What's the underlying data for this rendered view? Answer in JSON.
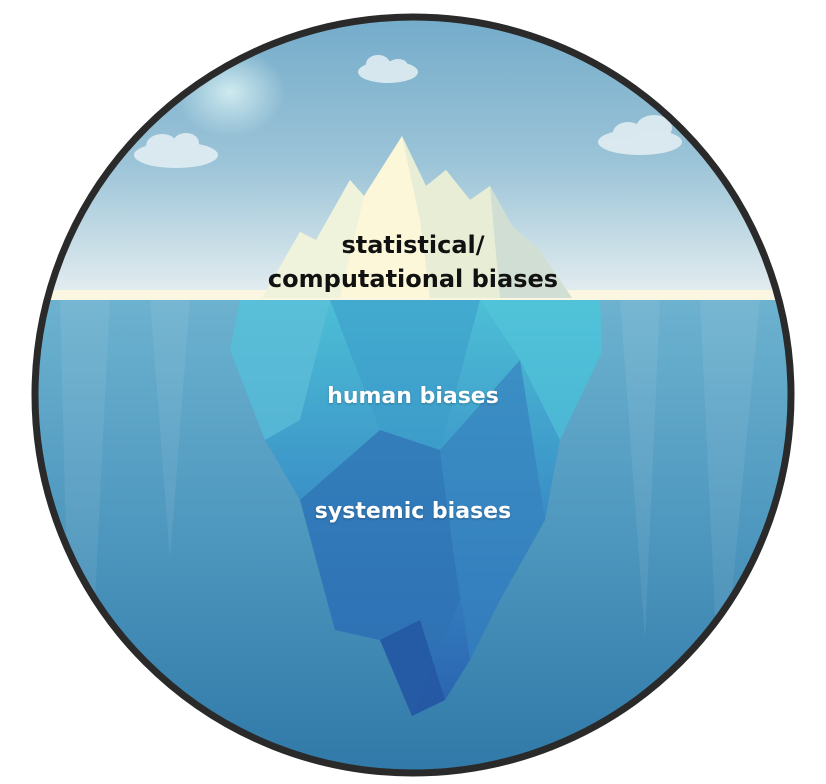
{
  "labels": {
    "tip_line1": "statistical/",
    "tip_line2": "computational biases",
    "middle": "human biases",
    "bottom": "systemic biases"
  },
  "colors": {
    "border": "#2a2a2a",
    "sky_top": "#7fb4d0",
    "sky_bottom": "#dbe8ee",
    "horizon": "#fdf8e4",
    "water_top": "#5ea6c7",
    "water_bottom": "#2e7aa9",
    "ice_tip": "#fbf7dc",
    "ice_under": "#3e9fc9",
    "ice_deep": "#2a6fb0"
  },
  "icons": [
    "cloud-icon",
    "iceberg-illustration"
  ]
}
